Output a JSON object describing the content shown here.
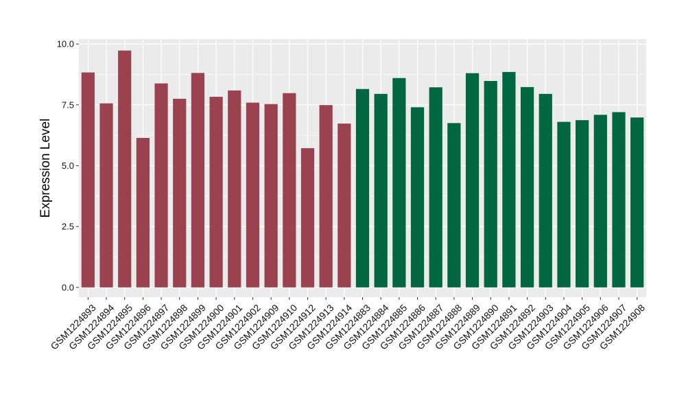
{
  "chart_data": {
    "type": "bar",
    "ylabel": "Expression Level",
    "xlabel": "",
    "ylim": [
      -0.4,
      10.2
    ],
    "yticks": [
      0.0,
      2.5,
      5.0,
      7.5,
      10.0
    ],
    "ytick_labels": [
      "0.0",
      "2.5",
      "5.0",
      "7.5",
      "10.0"
    ],
    "grid": true,
    "panel_background": "#ebebeb",
    "grid_color": "#ffffff",
    "categories": [
      "GSM1224893",
      "GSM1224894",
      "GSM1224895",
      "GSM1224896",
      "GSM1224897",
      "GSM1224898",
      "GSM1224899",
      "GSM1224900",
      "GSM1224901",
      "GSM1224902",
      "GSM1224909",
      "GSM1224910",
      "GSM1224912",
      "GSM1224913",
      "GSM1224914",
      "GSM1224883",
      "GSM1224884",
      "GSM1224885",
      "GSM1224886",
      "GSM1224887",
      "GSM1224888",
      "GSM1224889",
      "GSM1224890",
      "GSM1224891",
      "GSM1224892",
      "GSM1224903",
      "GSM1224904",
      "GSM1224905",
      "GSM1224906",
      "GSM1224907",
      "GSM1224908"
    ],
    "values": [
      8.83,
      7.56,
      9.73,
      6.14,
      8.38,
      7.75,
      8.81,
      7.83,
      8.09,
      7.59,
      7.53,
      7.98,
      5.72,
      7.49,
      6.73,
      8.15,
      7.95,
      8.6,
      7.4,
      8.22,
      6.75,
      8.8,
      8.48,
      8.85,
      8.23,
      7.95,
      6.8,
      6.87,
      7.09,
      7.2,
      6.98
    ],
    "bar_colors": [
      "#9b4250",
      "#9b4250",
      "#9b4250",
      "#9b4250",
      "#9b4250",
      "#9b4250",
      "#9b4250",
      "#9b4250",
      "#9b4250",
      "#9b4250",
      "#9b4250",
      "#9b4250",
      "#9b4250",
      "#9b4250",
      "#9b4250",
      "#006742",
      "#006742",
      "#006742",
      "#006742",
      "#006742",
      "#006742",
      "#006742",
      "#006742",
      "#006742",
      "#006742",
      "#006742",
      "#006742",
      "#006742",
      "#006742",
      "#006742",
      "#006742"
    ]
  }
}
